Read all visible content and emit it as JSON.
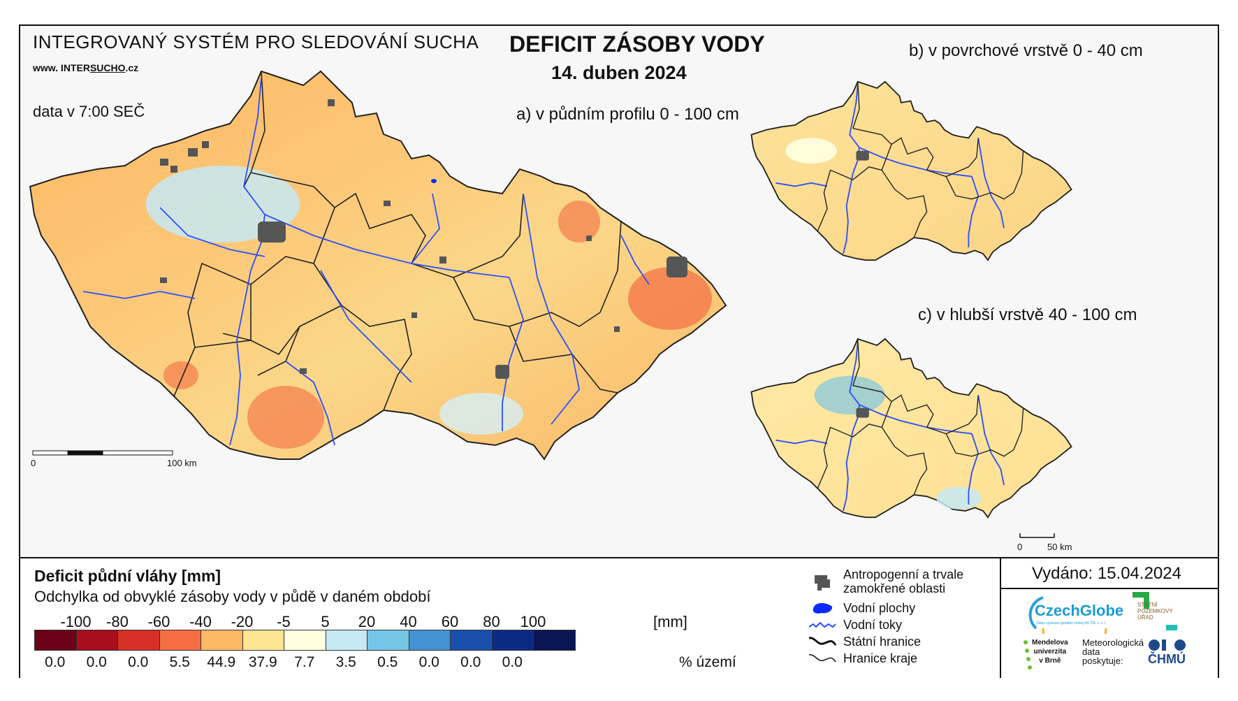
{
  "header": {
    "system_title": "INTEGROVANÝ SYSTÉM PRO SLEDOVÁNÍ SUCHA",
    "website_prefix": "www. INTER",
    "website_highlight": "SUCHO",
    "website_suffix": ".cz",
    "data_time": "data v 7:00 SEČ",
    "main_title": "DEFICIT ZÁSOBY VODY",
    "date": "14. duben 2024"
  },
  "maps": {
    "a_label": "a) v půdním profilu 0 - 100 cm",
    "b_label": "b) v povrchové vrstvě 0 - 40 cm",
    "c_label": "c) v hlubší vrstvě 40 - 100 cm",
    "scale_main": [
      "0",
      "100 km"
    ],
    "scale_small": [
      "0",
      "50 km"
    ]
  },
  "legend": {
    "title": "Deficit půdní vláhy  [mm]",
    "subtitle": "Odchylka od obvyklé zásoby vody v půdě v daném období",
    "ramp_values": [
      "-100",
      "-80",
      "-60",
      "-40",
      "-20",
      "-5",
      "5",
      "20",
      "40",
      "60",
      "80",
      "100"
    ],
    "unit_mm": "[mm]",
    "classes": [
      {
        "color": "#6b0016",
        "pct": "0.0"
      },
      {
        "color": "#a50f1e",
        "pct": "0.0"
      },
      {
        "color": "#d73027",
        "pct": "0.0"
      },
      {
        "color": "#f46d43",
        "pct": "5.5"
      },
      {
        "color": "#fdb863",
        "pct": "44.9"
      },
      {
        "color": "#fee593",
        "pct": "37.9"
      },
      {
        "color": "#ffffe0",
        "pct": "7.7"
      },
      {
        "color": "#c6e9f5",
        "pct": "3.5"
      },
      {
        "color": "#74c5e6",
        "pct": "0.5"
      },
      {
        "color": "#4393d3",
        "pct": "0.0"
      },
      {
        "color": "#1a4fb0",
        "pct": "0.0"
      },
      {
        "color": "#0c2a85",
        "pct": "0.0"
      },
      {
        "color": "#081552",
        "pct": ""
      }
    ],
    "unit_pct": "% území"
  },
  "symbols": {
    "anthropogenic": "Antropogenní a trvale",
    "anthropogenic_2": "zamokřené oblasti",
    "water_bodies": "Vodní plochy",
    "rivers": "Vodní toky",
    "state_border": "Státní hranice",
    "region_border": "Hranice kraje",
    "river_color": "#2b4fff",
    "water_color": "#0a2bff",
    "urban_color": "#555555"
  },
  "issuer": {
    "issued": "Vydáno: 15.04.2024",
    "czechglobe": "CzechGlobe",
    "czechglobe_sub": "Ústav výzkumu globální změny AV ČR, v. v. i.",
    "spu_1": "STÁTNÍ",
    "spu_2": "POZEMKOVÝ",
    "spu_3": "ÚŘAD",
    "mendel_1": "Mendelova",
    "mendel_2": "univerzita",
    "mendel_3": "v Brně",
    "meteo_1": "Meteorologická",
    "meteo_2": "data",
    "meteo_3": "poskytuje:",
    "chmu": "ČHMÚ"
  }
}
